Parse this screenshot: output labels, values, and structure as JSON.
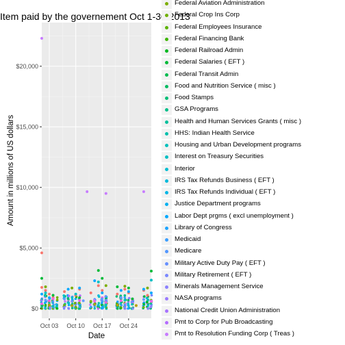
{
  "chart_data": {
    "type": "scatter",
    "title": "Item paid by the governement Oct 1-30 2013",
    "xlabel": "Date",
    "ylabel": "Amount in millions of US dollars",
    "x_ticks": [
      "Oct 03",
      "Oct 10",
      "Oct 17",
      "Oct 24"
    ],
    "y_ticks": [
      "$0",
      "$5,000",
      "$10,000",
      "$15,000",
      "$20,000"
    ],
    "y_tick_values": [
      0,
      5000,
      10000,
      15000,
      20000
    ],
    "xlim": [
      "2013-10-01",
      "2013-10-30"
    ],
    "ylim": [
      -800,
      23600
    ],
    "grid": true,
    "legend_position": "right",
    "legend": [
      {
        "label": "Federal Aviation Administration",
        "color": "#7CAE00"
      },
      {
        "label": "Federal Crop Ins Corp",
        "color": "#6FB000"
      },
      {
        "label": "Federal Employees Insurance",
        "color": "#5BB300"
      },
      {
        "label": "Federal Financing Bank",
        "color": "#3DB600"
      },
      {
        "label": "Federal Railroad Admin",
        "color": "#00B81F"
      },
      {
        "label": "Federal Salaries ( EFT )",
        "color": "#00BA38"
      },
      {
        "label": "Federal Transit Admin",
        "color": "#00BB4E"
      },
      {
        "label": "Food and Nutrition Service ( misc )",
        "color": "#00BC62"
      },
      {
        "label": "Food Stamps",
        "color": "#00BE76"
      },
      {
        "label": "GSA Programs",
        "color": "#00BF89"
      },
      {
        "label": "Health and Human Services Grants ( misc )",
        "color": "#00C09B"
      },
      {
        "label": "HHS: Indian Health Service",
        "color": "#00C0AC"
      },
      {
        "label": "Housing and Urban Development programs",
        "color": "#00C0BC"
      },
      {
        "label": "Interest on Treasury Securities",
        "color": "#00BFC4"
      },
      {
        "label": "Interior",
        "color": "#00BDD0"
      },
      {
        "label": "IRS Tax Refunds Business ( EFT )",
        "color": "#00BADB"
      },
      {
        "label": "IRS Tax Refunds Individual ( EFT )",
        "color": "#00B6E6"
      },
      {
        "label": "Justice Department programs",
        "color": "#00B0F0"
      },
      {
        "label": "Labor Dept prgms ( excl unemployment )",
        "color": "#00A9FF"
      },
      {
        "label": "Library of Congress",
        "color": "#1DA4FF"
      },
      {
        "label": "Medicaid",
        "color": "#3A9EFF"
      },
      {
        "label": "Medicare",
        "color": "#5297FF"
      },
      {
        "label": "Military Active Duty Pay ( EFT )",
        "color": "#6790FF"
      },
      {
        "label": "Military Retirement ( EFT )",
        "color": "#7A88FF"
      },
      {
        "label": "Minerals Management Service",
        "color": "#8B81FF"
      },
      {
        "label": "NASA programs",
        "color": "#9A7AFF"
      },
      {
        "label": "National Credit Union Administration",
        "color": "#A872FF"
      },
      {
        "label": "Pmt to Corp for Pub Broadcasting",
        "color": "#B46BFF"
      },
      {
        "label": "Pmt to Resolution Funding Corp ( Treas )",
        "color": "#C77CFF"
      }
    ],
    "series": [
      {
        "color": "#C77CFF",
        "points": [
          [
            "2013-10-01",
            22300
          ],
          [
            "2013-10-13",
            9650
          ],
          [
            "2013-10-18",
            9500
          ],
          [
            "2013-10-28",
            9650
          ]
        ]
      },
      {
        "color": "#F8766D",
        "points": [
          [
            "2013-10-01",
            4600
          ],
          [
            "2013-10-01",
            1750
          ],
          [
            "2013-10-02",
            1500
          ],
          [
            "2013-10-03",
            1200
          ],
          [
            "2013-10-04",
            900
          ],
          [
            "2013-10-07",
            1400
          ],
          [
            "2013-10-10",
            1100
          ],
          [
            "2013-10-11",
            1600
          ],
          [
            "2013-10-14",
            1300
          ],
          [
            "2013-10-16",
            1900
          ],
          [
            "2013-10-17",
            1500
          ],
          [
            "2013-10-21",
            1200
          ],
          [
            "2013-10-23",
            1600
          ],
          [
            "2013-10-24",
            1300
          ],
          [
            "2013-10-28",
            1500
          ],
          [
            "2013-10-29",
            1100
          ]
        ]
      },
      {
        "color": "#F564E3",
        "points": [
          [
            "2013-10-01",
            400
          ],
          [
            "2013-10-03",
            650
          ],
          [
            "2013-10-04",
            800
          ],
          [
            "2013-10-08",
            550
          ],
          [
            "2013-10-11",
            700
          ],
          [
            "2013-10-15",
            600
          ],
          [
            "2013-10-17",
            900
          ],
          [
            "2013-10-18",
            500
          ],
          [
            "2013-10-22",
            650
          ],
          [
            "2013-10-25",
            750
          ],
          [
            "2013-10-30",
            600
          ]
        ]
      },
      {
        "color": "#00A9FF",
        "points": [
          [
            "2013-10-01",
            1200
          ],
          [
            "2013-10-03",
            900
          ],
          [
            "2013-10-08",
            1600
          ],
          [
            "2013-10-11",
            1700
          ],
          [
            "2013-10-15",
            2300
          ],
          [
            "2013-10-17",
            1300
          ],
          [
            "2013-10-22",
            1500
          ],
          [
            "2013-10-24",
            1400
          ],
          [
            "2013-10-28",
            1600
          ],
          [
            "2013-10-30",
            1300
          ]
        ]
      },
      {
        "color": "#00BA38",
        "points": [
          [
            "2013-10-01",
            2500
          ],
          [
            "2013-10-04",
            1100
          ],
          [
            "2013-10-16",
            3150
          ],
          [
            "2013-10-17",
            2500
          ],
          [
            "2013-10-21",
            1800
          ],
          [
            "2013-10-24",
            1700
          ],
          [
            "2013-10-30",
            3100
          ],
          [
            "2013-10-11",
            900
          ],
          [
            "2013-10-25",
            800
          ]
        ]
      },
      {
        "color": "#7CAE00",
        "points": [
          [
            "2013-10-02",
            1800
          ],
          [
            "2013-10-09",
            1700
          ],
          [
            "2013-10-18",
            1900
          ],
          [
            "2013-10-23",
            1850
          ],
          [
            "2013-10-29",
            1700
          ],
          [
            "2013-10-14",
            600
          ]
        ]
      },
      {
        "color": "#00BFC4",
        "points": [
          [
            "2013-10-02",
            1300
          ],
          [
            "2013-10-08",
            500
          ],
          [
            "2013-10-10",
            1200
          ],
          [
            "2013-10-16",
            2200
          ],
          [
            "2013-10-23",
            700
          ],
          [
            "2013-10-30",
            2350
          ],
          [
            "2013-10-18",
            300
          ],
          [
            "2013-10-04",
            200
          ]
        ]
      },
      {
        "color": "#B79F00",
        "points": [
          [
            "2013-10-03",
            300
          ],
          [
            "2013-10-09",
            250
          ],
          [
            "2013-10-15",
            350
          ],
          [
            "2013-10-21",
            300
          ],
          [
            "2013-10-26",
            250
          ]
        ]
      },
      {
        "color": "#619CFF",
        "points": [
          [
            "2013-10-02",
            700
          ],
          [
            "2013-10-07",
            800
          ],
          [
            "2013-10-12",
            650
          ],
          [
            "2013-10-17",
            800
          ],
          [
            "2013-10-22",
            900
          ],
          [
            "2013-10-28",
            750
          ]
        ]
      }
    ],
    "background_points": {
      "n": 320,
      "y_max": 1100,
      "seed": 7,
      "days": [
        1,
        2,
        3,
        4,
        5,
        7,
        8,
        9,
        10,
        11,
        14,
        15,
        16,
        17,
        18,
        21,
        22,
        23,
        24,
        25,
        28,
        29,
        30
      ]
    },
    "colors": {
      "panel": "#ebebeb",
      "grid": "#ffffff",
      "tick_text": "#4d4d4d",
      "tick": "#333333",
      "legend_key_bg": "#f2f2f2"
    }
  }
}
